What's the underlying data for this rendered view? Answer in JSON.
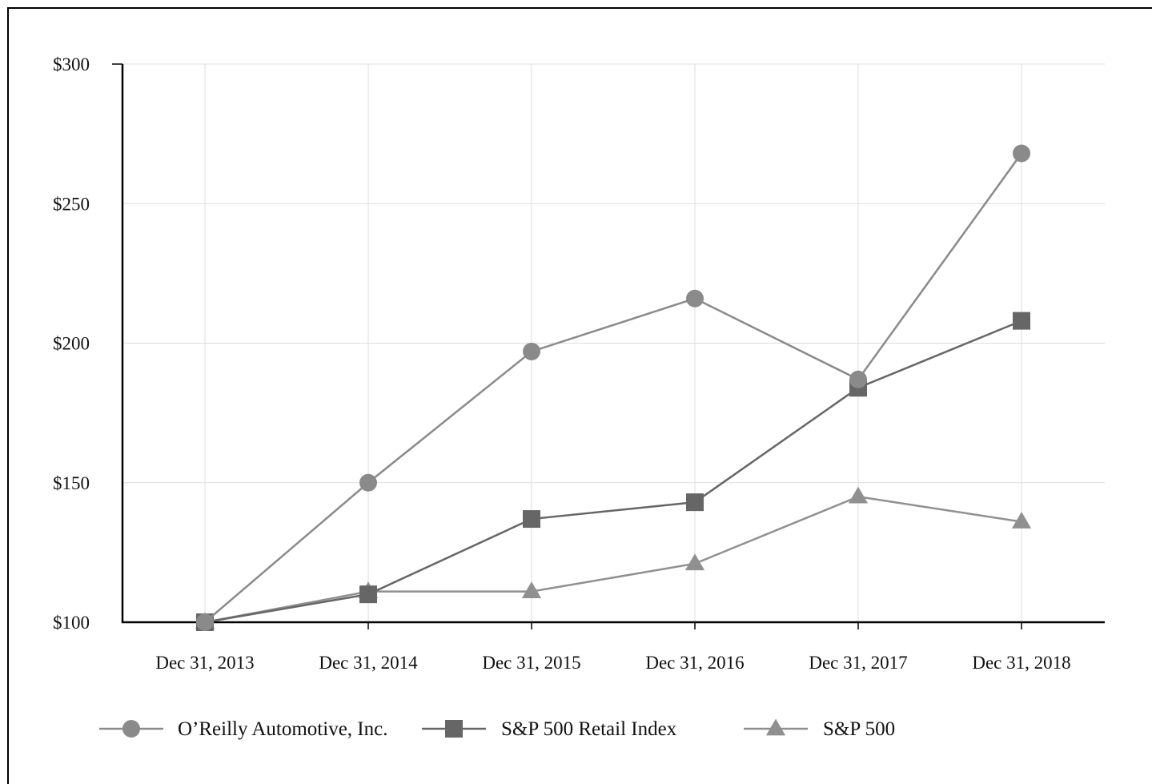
{
  "chart_data": {
    "type": "line",
    "title": "",
    "xlabel": "",
    "ylabel": "",
    "categories": [
      "Dec 31, 2013",
      "Dec 31, 2014",
      "Dec 31, 2015",
      "Dec 31, 2016",
      "Dec 31, 2017",
      "Dec 31, 2018"
    ],
    "ylim": [
      100,
      300
    ],
    "yticks": [
      100,
      150,
      200,
      250,
      300
    ],
    "ytick_labels": [
      "$100",
      "$150",
      "$200",
      "$250",
      "$300"
    ],
    "grid": true,
    "legend_position": "bottom",
    "series": [
      {
        "name": "O’Reilly Automotive, Inc.",
        "marker": "circle",
        "color": "#8a8a8a",
        "values": [
          100,
          150,
          197,
          216,
          187,
          268
        ]
      },
      {
        "name": "S&P 500 Retail Index",
        "marker": "square",
        "color": "#666666",
        "values": [
          100,
          110,
          137,
          143,
          184,
          208
        ]
      },
      {
        "name": "S&P 500",
        "marker": "triangle",
        "color": "#909090",
        "values": [
          100,
          111,
          111,
          121,
          145,
          136
        ]
      }
    ]
  }
}
